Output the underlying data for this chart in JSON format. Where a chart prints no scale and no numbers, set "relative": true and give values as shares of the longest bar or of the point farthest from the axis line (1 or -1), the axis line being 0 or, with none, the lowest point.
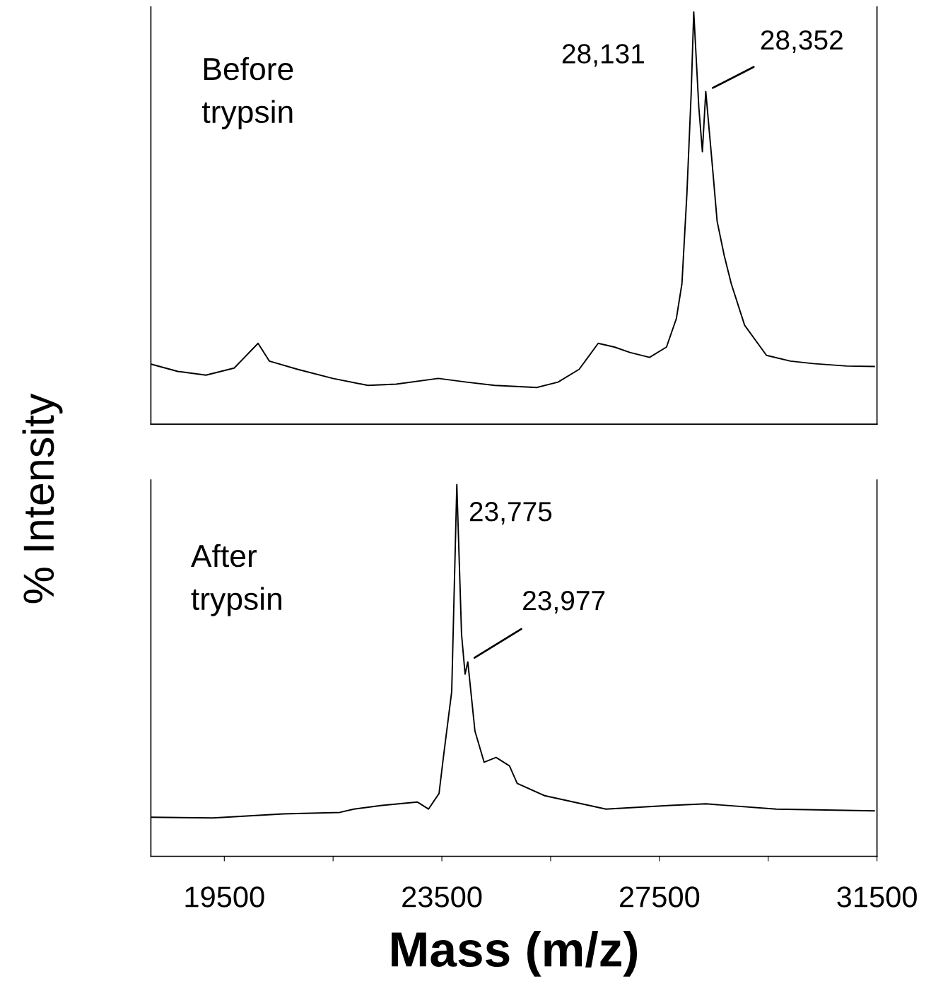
{
  "chart_data": [
    {
      "type": "line",
      "ylabel": "% Intensity",
      "relative": true,
      "color": "#000000",
      "xlim": [
        18150,
        31500
      ],
      "tick_labels": false,
      "annotations": [
        "Before\ntrypsin",
        {
          "text": "28,131",
          "x": 28131,
          "y": 1.0
        },
        {
          "text": "28,352",
          "x": 28352,
          "y": 0.807
        }
      ],
      "x": [
        18167,
        18646,
        19163,
        19681,
        20121,
        20328,
        20846,
        21494,
        22141,
        22659,
        23435,
        23953,
        24471,
        25248,
        25636,
        26024,
        26374,
        26672,
        26956,
        27319,
        27630,
        27811,
        27914,
        28005,
        28083,
        28131,
        28225,
        28290,
        28352,
        28471,
        28561,
        28691,
        28820,
        29066,
        29468,
        29908,
        30322,
        30943,
        31450
      ],
      "values": [
        0.145,
        0.128,
        0.119,
        0.136,
        0.196,
        0.153,
        0.133,
        0.111,
        0.094,
        0.097,
        0.111,
        0.102,
        0.094,
        0.089,
        0.102,
        0.133,
        0.196,
        0.187,
        0.174,
        0.162,
        0.187,
        0.256,
        0.341,
        0.559,
        0.8,
        1.0,
        0.767,
        0.661,
        0.807,
        0.63,
        0.492,
        0.409,
        0.341,
        0.24,
        0.167,
        0.153,
        0.147,
        0.141,
        0.14
      ]
    },
    {
      "type": "line",
      "xlabel": "Mass (m/z)",
      "relative": true,
      "color": "#000000",
      "xlim": [
        18150,
        31500
      ],
      "tick_labels": "x",
      "xticks": [
        19500,
        {
          "value": 21500,
          "label": null
        },
        23500,
        {
          "value": 25500,
          "label": null
        },
        27500,
        {
          "value": 29500,
          "label": null
        },
        31500
      ],
      "annotations": [
        "After\ntrypsin",
        {
          "text": "23,775",
          "x": 23775,
          "y": 1.0
        },
        {
          "text": "23,977",
          "x": 23977,
          "y": 0.523
        }
      ],
      "x": [
        18167,
        19293,
        20588,
        21623,
        21882,
        22400,
        23047,
        23254,
        23448,
        23526,
        23681,
        23775,
        23862,
        23927,
        23977,
        24108,
        24277,
        24497,
        24743,
        24885,
        25390,
        26516,
        27707,
        28354,
        29649,
        31450
      ],
      "values": [
        0.105,
        0.103,
        0.114,
        0.118,
        0.127,
        0.137,
        0.146,
        0.127,
        0.169,
        0.264,
        0.443,
        1.0,
        0.597,
        0.49,
        0.523,
        0.337,
        0.253,
        0.266,
        0.243,
        0.196,
        0.163,
        0.127,
        0.137,
        0.141,
        0.127,
        0.122
      ]
    }
  ]
}
